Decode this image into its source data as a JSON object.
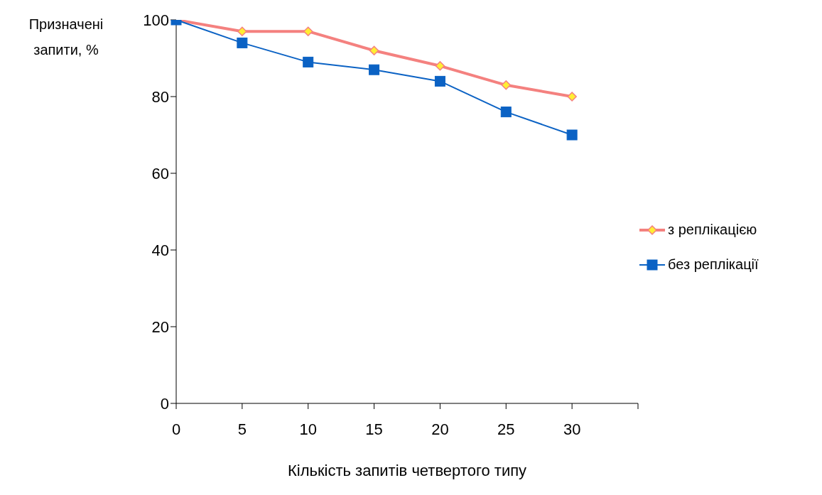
{
  "chart_data": {
    "type": "line",
    "ylabel": "Призначені запити, %",
    "xlabel": "Кількість запитів четвертого типу",
    "categories": [
      "0",
      "5",
      "10",
      "15",
      "20",
      "25",
      "30",
      null
    ],
    "series": [
      {
        "name": "з реплікацією",
        "color": "#f4817f",
        "marker": "diamond",
        "values": [
          100,
          97,
          97,
          92,
          88,
          83,
          80,
          null
        ]
      },
      {
        "name": "без реплікації",
        "color": "#0b62c4",
        "marker": "square",
        "values": [
          100,
          94,
          89,
          87,
          84,
          76,
          70,
          null
        ]
      }
    ],
    "ylim": [
      0,
      100
    ],
    "yticks": [
      0,
      20,
      40,
      60,
      80,
      100
    ],
    "grid": false,
    "legend": "right"
  }
}
